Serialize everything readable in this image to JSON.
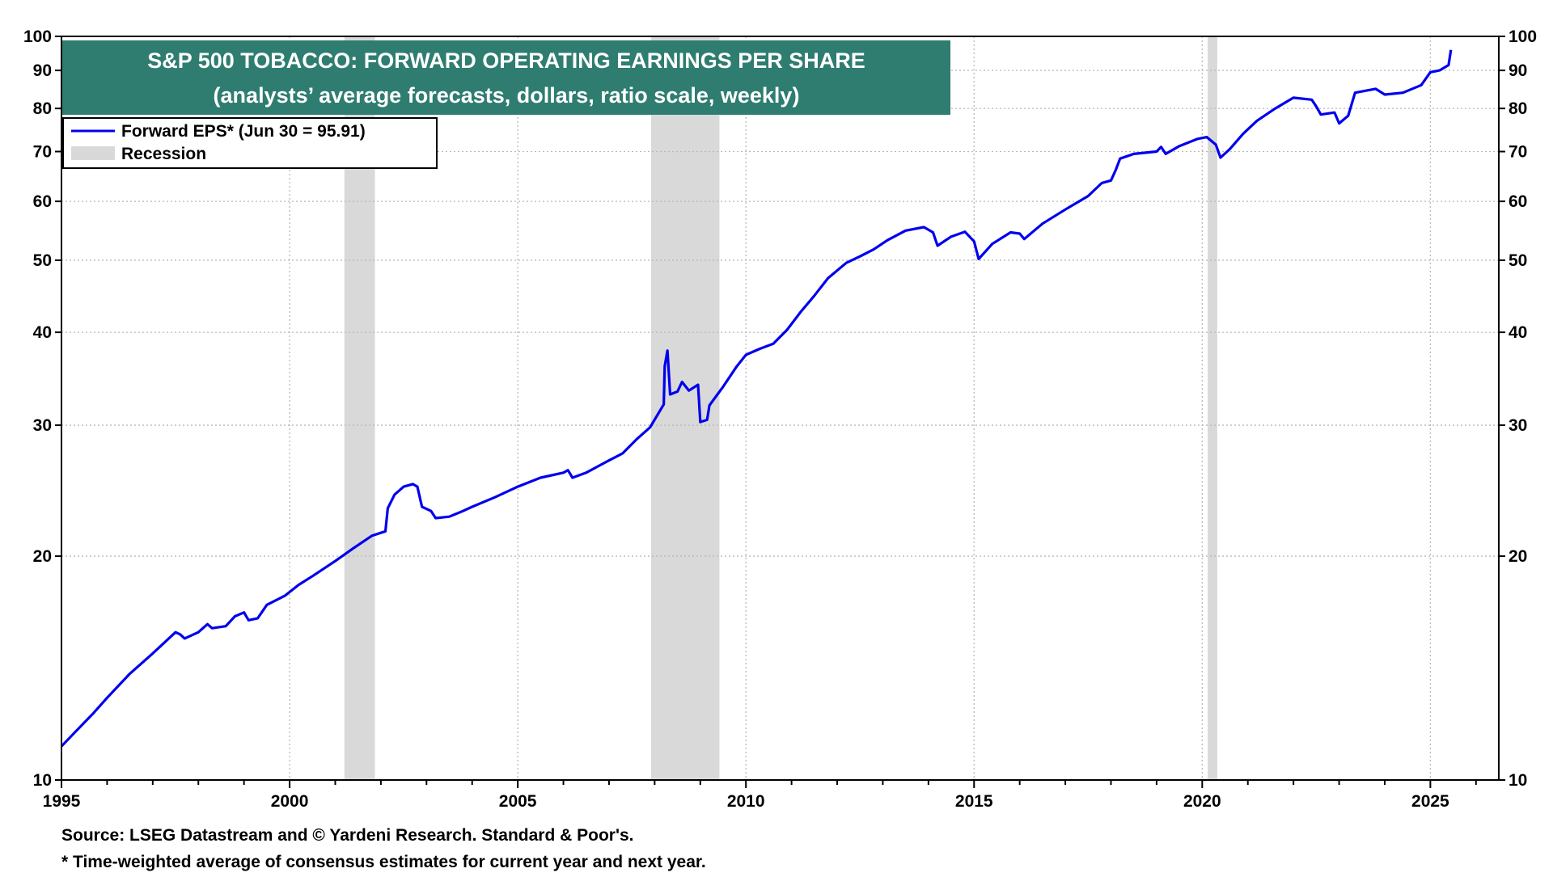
{
  "chart_data": {
    "type": "line",
    "title": "S&P 500 TOBACCO: FORWARD OPERATING EARNINGS PER SHARE",
    "subtitle": "(analysts’ average forecasts, dollars, ratio scale, weekly)",
    "y_scale": "log",
    "ylim": [
      10,
      100
    ],
    "xlim": [
      1995,
      2026.5
    ],
    "y_ticks": [
      10,
      20,
      30,
      40,
      50,
      60,
      70,
      80,
      90,
      100
    ],
    "y_tick_labels": [
      "10",
      "20",
      "30",
      "40",
      "50",
      "60",
      "70",
      "80",
      "90",
      "100"
    ],
    "x_ticks": [
      1995,
      2000,
      2005,
      2010,
      2015,
      2020,
      2025
    ],
    "x_tick_labels": [
      "1995",
      "2000",
      "2005",
      "2010",
      "2015",
      "2020",
      "2025"
    ],
    "grid": true,
    "legend_position": "top-left",
    "legend": [
      {
        "label": "Forward EPS* (Jun 30 = 95.91)",
        "kind": "line",
        "color": "#0000ee"
      },
      {
        "label": "Recession",
        "kind": "band",
        "color": "#d9d9d9"
      }
    ],
    "recessions": [
      [
        2001.2,
        2001.87
      ],
      [
        2007.92,
        2009.42
      ],
      [
        2020.12,
        2020.33
      ]
    ],
    "series": [
      {
        "name": "Forward EPS*",
        "color": "#0000ee",
        "points": [
          [
            1995.0,
            11.1
          ],
          [
            1995.3,
            11.6
          ],
          [
            1995.7,
            12.3
          ],
          [
            1996.0,
            12.9
          ],
          [
            1996.5,
            13.9
          ],
          [
            1997.0,
            14.8
          ],
          [
            1997.5,
            15.8
          ],
          [
            1997.6,
            15.7
          ],
          [
            1997.7,
            15.5
          ],
          [
            1998.0,
            15.8
          ],
          [
            1998.2,
            16.2
          ],
          [
            1998.3,
            16.0
          ],
          [
            1998.6,
            16.1
          ],
          [
            1998.8,
            16.6
          ],
          [
            1999.0,
            16.8
          ],
          [
            1999.1,
            16.4
          ],
          [
            1999.3,
            16.5
          ],
          [
            1999.5,
            17.2
          ],
          [
            1999.9,
            17.7
          ],
          [
            2000.2,
            18.3
          ],
          [
            2000.5,
            18.8
          ],
          [
            2001.0,
            19.7
          ],
          [
            2001.4,
            20.5
          ],
          [
            2001.8,
            21.3
          ],
          [
            2002.1,
            21.6
          ],
          [
            2002.15,
            23.2
          ],
          [
            2002.3,
            24.2
          ],
          [
            2002.5,
            24.8
          ],
          [
            2002.7,
            25.0
          ],
          [
            2002.8,
            24.8
          ],
          [
            2002.9,
            23.3
          ],
          [
            2003.1,
            23.0
          ],
          [
            2003.2,
            22.5
          ],
          [
            2003.5,
            22.6
          ],
          [
            2003.8,
            23.0
          ],
          [
            2004.0,
            23.3
          ],
          [
            2004.5,
            24.0
          ],
          [
            2005.0,
            24.8
          ],
          [
            2005.5,
            25.5
          ],
          [
            2006.0,
            25.9
          ],
          [
            2006.1,
            26.1
          ],
          [
            2006.2,
            25.5
          ],
          [
            2006.5,
            25.9
          ],
          [
            2006.8,
            26.5
          ],
          [
            2007.0,
            26.9
          ],
          [
            2007.3,
            27.5
          ],
          [
            2007.6,
            28.7
          ],
          [
            2007.9,
            29.8
          ],
          [
            2008.2,
            32.0
          ],
          [
            2008.22,
            36.0
          ],
          [
            2008.28,
            37.8
          ],
          [
            2008.34,
            33.0
          ],
          [
            2008.5,
            33.3
          ],
          [
            2008.6,
            34.3
          ],
          [
            2008.75,
            33.4
          ],
          [
            2008.95,
            34.0
          ],
          [
            2009.0,
            30.3
          ],
          [
            2009.15,
            30.5
          ],
          [
            2009.2,
            31.9
          ],
          [
            2009.5,
            33.8
          ],
          [
            2009.8,
            36.0
          ],
          [
            2010.0,
            37.3
          ],
          [
            2010.3,
            38.0
          ],
          [
            2010.6,
            38.6
          ],
          [
            2010.9,
            40.3
          ],
          [
            2011.2,
            42.6
          ],
          [
            2011.5,
            44.8
          ],
          [
            2011.8,
            47.3
          ],
          [
            2012.2,
            49.6
          ],
          [
            2012.5,
            50.6
          ],
          [
            2012.8,
            51.7
          ],
          [
            2013.1,
            53.2
          ],
          [
            2013.5,
            54.8
          ],
          [
            2013.9,
            55.4
          ],
          [
            2014.1,
            54.5
          ],
          [
            2014.2,
            52.3
          ],
          [
            2014.5,
            53.8
          ],
          [
            2014.8,
            54.6
          ],
          [
            2015.0,
            53.0
          ],
          [
            2015.1,
            50.2
          ],
          [
            2015.4,
            52.6
          ],
          [
            2015.8,
            54.5
          ],
          [
            2016.0,
            54.3
          ],
          [
            2016.1,
            53.4
          ],
          [
            2016.5,
            56.0
          ],
          [
            2017.0,
            58.5
          ],
          [
            2017.5,
            61.0
          ],
          [
            2017.8,
            63.5
          ],
          [
            2018.0,
            64.0
          ],
          [
            2018.1,
            66.0
          ],
          [
            2018.2,
            68.5
          ],
          [
            2018.5,
            69.5
          ],
          [
            2019.0,
            70.0
          ],
          [
            2019.1,
            71.0
          ],
          [
            2019.2,
            69.5
          ],
          [
            2019.5,
            71.2
          ],
          [
            2019.9,
            72.8
          ],
          [
            2020.1,
            73.2
          ],
          [
            2020.3,
            71.5
          ],
          [
            2020.4,
            68.7
          ],
          [
            2020.6,
            70.5
          ],
          [
            2020.9,
            74.0
          ],
          [
            2021.2,
            77.0
          ],
          [
            2021.6,
            80.0
          ],
          [
            2022.0,
            82.7
          ],
          [
            2022.4,
            82.2
          ],
          [
            2022.5,
            80.5
          ],
          [
            2022.6,
            78.5
          ],
          [
            2022.9,
            79.0
          ],
          [
            2023.0,
            76.4
          ],
          [
            2023.2,
            78.2
          ],
          [
            2023.35,
            84.0
          ],
          [
            2023.8,
            85.0
          ],
          [
            2024.0,
            83.5
          ],
          [
            2024.4,
            84.0
          ],
          [
            2024.8,
            86.0
          ],
          [
            2025.0,
            89.5
          ],
          [
            2025.2,
            90.0
          ],
          [
            2025.4,
            91.5
          ],
          [
            2025.45,
            95.9
          ]
        ]
      }
    ],
    "notes": [
      "Source: LSEG Datastream and © Yardeni Research. Standard & Poor's.",
      "* Time-weighted average of consensus estimates for current year and next year."
    ]
  },
  "style": {
    "title_box_color": "#2e7d70",
    "title_text_color": "#ffffff",
    "line_color": "#0000ee",
    "recession_color": "#d9d9d9",
    "grid_color": "#b8b8b8"
  }
}
